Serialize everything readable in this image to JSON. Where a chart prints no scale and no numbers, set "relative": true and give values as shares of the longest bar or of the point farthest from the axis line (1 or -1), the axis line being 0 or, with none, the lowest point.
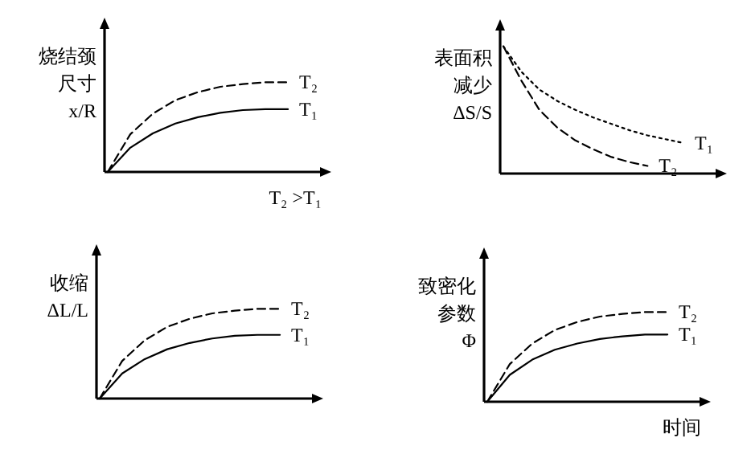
{
  "chart_data": [
    {
      "type": "line",
      "relative": true,
      "ylabel": "烧结颈尺寸\nx/R",
      "xlabel": "T₂ >T₁",
      "categories": [
        null,
        null,
        null,
        null,
        null,
        null,
        null,
        null,
        null
      ],
      "series": [
        {
          "name": "T₂",
          "color": "#000000",
          "line_style": "dashed",
          "values": [
            0,
            0.42,
            0.65,
            0.8,
            0.89,
            0.95,
            0.98,
            1,
            1
          ]
        },
        {
          "name": "T₁",
          "color": "#000000",
          "line_style": "solid",
          "values": [
            0,
            0.27,
            0.43,
            0.54,
            0.61,
            0.66,
            0.69,
            0.7,
            0.7
          ]
        }
      ]
    },
    {
      "type": "line",
      "relative": true,
      "ylabel": "表面积减少\nΔS/S",
      "categories": [
        null,
        null,
        null,
        null,
        null,
        null,
        null,
        null,
        null,
        null,
        null
      ],
      "series": [
        {
          "name": "T₁",
          "color": "#000000",
          "line_style": "dotted",
          "values": [
            1,
            0.8,
            0.66,
            0.57,
            0.5,
            0.44,
            0.39,
            0.34,
            0.3,
            0.27,
            0.24
          ]
        },
        {
          "name": "T₂",
          "color": "#000000",
          "line_style": "dashed",
          "values": [
            1,
            0.73,
            0.5,
            0.36,
            0.26,
            0.19,
            0.13,
            0.09,
            0.06,
            null,
            null
          ]
        }
      ]
    },
    {
      "type": "line",
      "relative": true,
      "ylabel": "收缩\nΔL/L",
      "categories": [
        null,
        null,
        null,
        null,
        null,
        null,
        null,
        null,
        null
      ],
      "series": [
        {
          "name": "T₂",
          "color": "#000000",
          "line_style": "dashed",
          "values": [
            0,
            0.42,
            0.65,
            0.8,
            0.89,
            0.95,
            0.98,
            1,
            1
          ]
        },
        {
          "name": "T₁",
          "color": "#000000",
          "line_style": "solid",
          "values": [
            0,
            0.28,
            0.44,
            0.55,
            0.62,
            0.67,
            0.7,
            0.71,
            0.71
          ]
        }
      ]
    },
    {
      "type": "line",
      "relative": true,
      "ylabel": "致密化参数\nΦ",
      "xlabel": "时间",
      "categories": [
        null,
        null,
        null,
        null,
        null,
        null,
        null,
        null,
        null
      ],
      "series": [
        {
          "name": "T₂",
          "color": "#000000",
          "line_style": "dashed",
          "values": [
            0,
            0.42,
            0.65,
            0.8,
            0.89,
            0.95,
            0.98,
            1,
            1
          ]
        },
        {
          "name": "T₁",
          "color": "#000000",
          "line_style": "solid",
          "values": [
            0,
            0.3,
            0.47,
            0.58,
            0.65,
            0.7,
            0.73,
            0.75,
            0.75
          ]
        }
      ]
    }
  ]
}
